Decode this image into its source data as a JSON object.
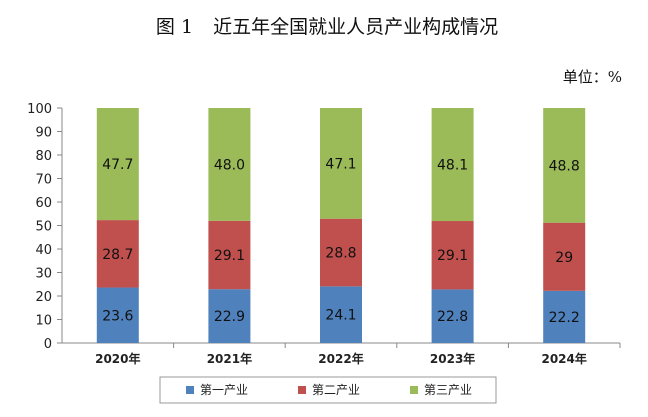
{
  "title": {
    "prefix": "图 1",
    "text": "近五年全国就业人员产业构成情况"
  },
  "unit_label": "单位：%",
  "chart_data": {
    "type": "bar",
    "stacked": true,
    "categories": [
      "2020年",
      "2021年",
      "2022年",
      "2023年",
      "2024年"
    ],
    "series": [
      {
        "name": "第一产业",
        "color": "#4f81bd",
        "values": [
          23.6,
          22.9,
          24.1,
          22.8,
          22.2
        ],
        "labels": [
          "23.6",
          "22.9",
          "24.1",
          "22.8",
          "22.2"
        ]
      },
      {
        "name": "第二产业",
        "color": "#c0504d",
        "values": [
          28.7,
          29.1,
          28.8,
          29.1,
          29
        ],
        "labels": [
          "28.7",
          "29.1",
          "28.8",
          "29.1",
          "29"
        ]
      },
      {
        "name": "第三产业",
        "color": "#9bbb59",
        "values": [
          47.7,
          48.0,
          47.1,
          48.1,
          48.8
        ],
        "labels": [
          "47.7",
          "48.0",
          "47.1",
          "48.1",
          "48.8"
        ]
      }
    ],
    "ylim": [
      0,
      100
    ],
    "yticks": [
      0,
      10,
      20,
      30,
      40,
      50,
      60,
      70,
      80,
      90,
      100
    ],
    "grid": false,
    "legend": "bottom"
  }
}
